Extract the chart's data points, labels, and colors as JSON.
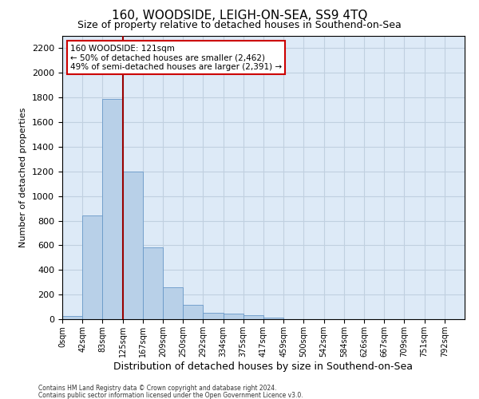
{
  "title": "160, WOODSIDE, LEIGH-ON-SEA, SS9 4TQ",
  "subtitle": "Size of property relative to detached houses in Southend-on-Sea",
  "xlabel": "Distribution of detached houses by size in Southend-on-Sea",
  "ylabel": "Number of detached properties",
  "bar_values": [
    25,
    840,
    1790,
    1200,
    580,
    260,
    115,
    50,
    45,
    30,
    15,
    0,
    0,
    0,
    0,
    0,
    0,
    0,
    0,
    0
  ],
  "bar_labels": [
    "0sqm",
    "42sqm",
    "83sqm",
    "125sqm",
    "167sqm",
    "209sqm",
    "250sqm",
    "292sqm",
    "334sqm",
    "375sqm",
    "417sqm",
    "459sqm",
    "500sqm",
    "542sqm",
    "584sqm",
    "626sqm",
    "667sqm",
    "709sqm",
    "751sqm",
    "792sqm"
  ],
  "bar_color": "#b8d0e8",
  "bar_edge_color": "#6898c8",
  "grid_color": "#c0d0e0",
  "background_color": "#ddeaf7",
  "vline_color": "#990000",
  "vline_x": 3,
  "annotation_line1": "160 WOODSIDE: 121sqm",
  "annotation_line2": "← 50% of detached houses are smaller (2,462)",
  "annotation_line3": "49% of semi-detached houses are larger (2,391) →",
  "annotation_box_color": "white",
  "annotation_box_edge": "#cc0000",
  "ylim": [
    0,
    2300
  ],
  "yticks": [
    0,
    200,
    400,
    600,
    800,
    1000,
    1200,
    1400,
    1600,
    1800,
    2000,
    2200
  ],
  "footer1": "Contains HM Land Registry data © Crown copyright and database right 2024.",
  "footer2": "Contains public sector information licensed under the Open Government Licence v3.0.",
  "title_fontsize": 11,
  "subtitle_fontsize": 9,
  "ylabel_fontsize": 8,
  "xlabel_fontsize": 9,
  "ytick_fontsize": 8,
  "xtick_fontsize": 7
}
